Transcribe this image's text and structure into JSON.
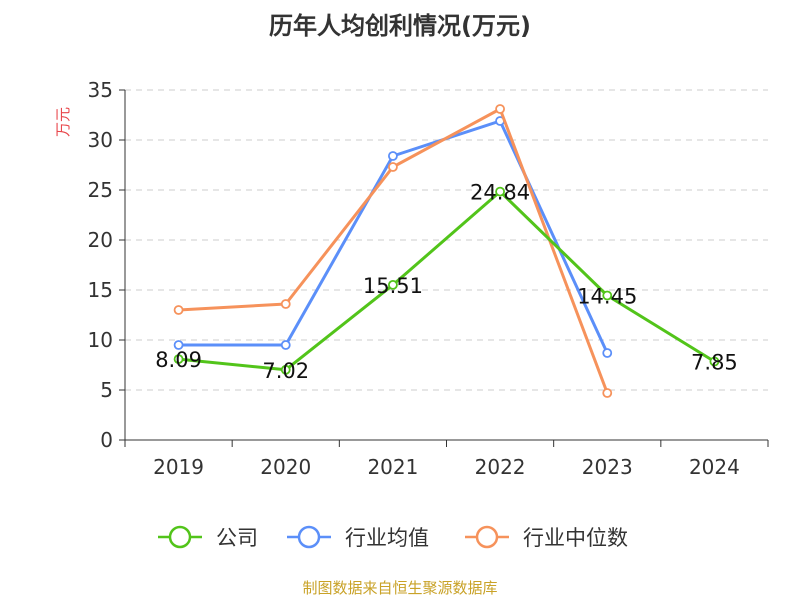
{
  "chart_data": {
    "type": "line",
    "title": "历年人均创利情况(万元)",
    "ylabel": "万元",
    "xlabel": "",
    "ylim": [
      0,
      35
    ],
    "y_ticks": [
      0,
      5,
      10,
      15,
      20,
      25,
      30,
      35
    ],
    "categories": [
      "2019",
      "2020",
      "2021",
      "2022",
      "2023",
      "2024"
    ],
    "grid": true,
    "legend_position": "bottom",
    "series": [
      {
        "name": "公司",
        "color": "#52c41a",
        "values": [
          8.09,
          7.02,
          15.51,
          24.84,
          14.45,
          7.85
        ],
        "labels": [
          "8.09",
          "7.02",
          "15.51",
          "24.84",
          "14.45",
          "7.85"
        ]
      },
      {
        "name": "行业均值",
        "color": "#5b8ff9",
        "values": [
          9.5,
          9.5,
          28.4,
          31.9,
          8.7,
          null
        ]
      },
      {
        "name": "行业中位数",
        "color": "#f6925b",
        "values": [
          13.0,
          13.6,
          27.3,
          33.1,
          4.7,
          null
        ]
      }
    ]
  },
  "source": "制图数据来自恒生聚源数据库",
  "colors": {
    "axis_label": "#e8474c",
    "source_text": "#c9a227",
    "grid": "#cccccc"
  }
}
